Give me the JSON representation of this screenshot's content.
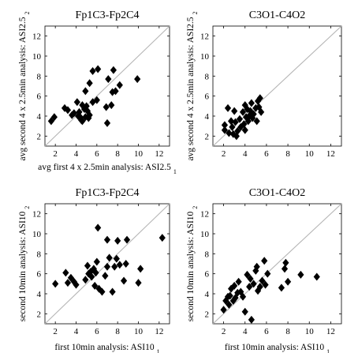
{
  "chart_data": [
    {
      "type": "scatter",
      "title": "Fp1C3-Fp2C4",
      "xlabel": "avg first 4 x 2.5min analysis: ASI2.5",
      "xlabel_sub": "1",
      "ylabel": "avg second 4 x 2.5min analysis: ASI2.5",
      "ylabel_sub": "2",
      "xlim": [
        1,
        13
      ],
      "ylim": [
        1,
        13
      ],
      "xticks": [
        2,
        4,
        6,
        8,
        10,
        12
      ],
      "yticks": [
        2,
        4,
        6,
        8,
        10,
        12
      ],
      "diagonal": true,
      "grid": false,
      "marker": "diamond",
      "points": [
        [
          1.6,
          3.5
        ],
        [
          1.9,
          3.9
        ],
        [
          2.9,
          4.8
        ],
        [
          3.2,
          4.6
        ],
        [
          3.6,
          4.1
        ],
        [
          3.8,
          4.3
        ],
        [
          4.1,
          5.4
        ],
        [
          4.2,
          4.0
        ],
        [
          4.3,
          4.4
        ],
        [
          4.4,
          3.9
        ],
        [
          4.5,
          3.6
        ],
        [
          4.6,
          3.5
        ],
        [
          4.6,
          5.1
        ],
        [
          4.8,
          4.7
        ],
        [
          4.9,
          3.9
        ],
        [
          4.9,
          6.5
        ],
        [
          5.0,
          5.0
        ],
        [
          5.1,
          4.5
        ],
        [
          5.2,
          3.8
        ],
        [
          5.3,
          4.1
        ],
        [
          5.3,
          7.3
        ],
        [
          5.6,
          5.4
        ],
        [
          5.6,
          8.5
        ],
        [
          6.0,
          5.6
        ],
        [
          6.1,
          8.7
        ],
        [
          6.9,
          4.9
        ],
        [
          7.0,
          3.3
        ],
        [
          7.1,
          7.7
        ],
        [
          7.4,
          5.1
        ],
        [
          7.5,
          6.4
        ],
        [
          7.6,
          8.6
        ],
        [
          7.8,
          6.5
        ],
        [
          8.2,
          7.1
        ],
        [
          9.9,
          7.7
        ]
      ]
    },
    {
      "type": "scatter",
      "title": "C3O1-C4O2",
      "xlabel": "",
      "ylabel": "avg second 4 x 2.5min analysis: ASI2.5",
      "ylabel_sub": "2",
      "xlim": [
        1,
        13
      ],
      "ylim": [
        1,
        13
      ],
      "xticks": [
        2,
        4,
        6,
        8,
        10,
        12
      ],
      "yticks": [
        2,
        4,
        6,
        8,
        10,
        12
      ],
      "diagonal": true,
      "grid": false,
      "marker": "diamond",
      "points": [
        [
          2.1,
          2.6
        ],
        [
          2.1,
          3.1
        ],
        [
          2.4,
          4.8
        ],
        [
          2.5,
          2.3
        ],
        [
          2.7,
          3.5
        ],
        [
          2.8,
          2.9
        ],
        [
          2.9,
          2.2
        ],
        [
          3.0,
          4.5
        ],
        [
          3.1,
          3.4
        ],
        [
          3.2,
          2.0
        ],
        [
          3.3,
          2.5
        ],
        [
          3.5,
          3.7
        ],
        [
          3.6,
          2.9
        ],
        [
          3.8,
          4.4
        ],
        [
          3.9,
          3.2
        ],
        [
          4.0,
          5.1
        ],
        [
          4.0,
          2.6
        ],
        [
          4.1,
          3.9
        ],
        [
          4.2,
          4.7
        ],
        [
          4.3,
          3.5
        ],
        [
          4.4,
          4.0
        ],
        [
          4.5,
          4.5
        ],
        [
          4.6,
          5.3
        ],
        [
          4.7,
          3.8
        ],
        [
          4.8,
          4.2
        ],
        [
          5.0,
          4.8
        ],
        [
          5.1,
          3.5
        ],
        [
          5.2,
          5.5
        ],
        [
          5.3,
          4.9
        ],
        [
          5.4,
          5.8
        ],
        [
          5.5,
          4.4
        ]
      ]
    },
    {
      "type": "scatter",
      "title": "Fp1C3-Fp2C4",
      "xlabel": "first 10min analysis: ASI10",
      "xlabel_sub": "1",
      "ylabel": "second 10min analysis: ASI10",
      "ylabel_sub": "2",
      "xlim": [
        1,
        13
      ],
      "ylim": [
        1,
        13
      ],
      "xticks": [
        2,
        4,
        6,
        8,
        10,
        12
      ],
      "yticks": [
        2,
        4,
        6,
        8,
        10,
        12
      ],
      "diagonal": true,
      "grid": false,
      "marker": "diamond",
      "points": [
        [
          2.0,
          5.0
        ],
        [
          3.0,
          6.1
        ],
        [
          3.2,
          5.1
        ],
        [
          3.5,
          5.6
        ],
        [
          3.8,
          5.2
        ],
        [
          4.0,
          4.9
        ],
        [
          4.9,
          5.4
        ],
        [
          5.1,
          6.8
        ],
        [
          5.2,
          6.0
        ],
        [
          5.4,
          6.2
        ],
        [
          5.5,
          5.7
        ],
        [
          5.7,
          6.5
        ],
        [
          5.8,
          4.8
        ],
        [
          5.9,
          6.1
        ],
        [
          6.0,
          7.2
        ],
        [
          6.1,
          10.6
        ],
        [
          6.2,
          4.5
        ],
        [
          6.5,
          4.2
        ],
        [
          6.8,
          5.8
        ],
        [
          7.0,
          6.7
        ],
        [
          7.0,
          9.4
        ],
        [
          7.2,
          7.6
        ],
        [
          7.5,
          4.2
        ],
        [
          7.7,
          6.7
        ],
        [
          7.9,
          7.5
        ],
        [
          8.0,
          9.3
        ],
        [
          8.2,
          6.9
        ],
        [
          8.6,
          5.3
        ],
        [
          8.8,
          7.0
        ],
        [
          8.9,
          9.4
        ],
        [
          10.0,
          5.1
        ],
        [
          10.2,
          6.5
        ],
        [
          12.3,
          9.6
        ]
      ]
    },
    {
      "type": "scatter",
      "title": "C3O1-C4O2",
      "xlabel": "first 10min analysis: ASI10",
      "xlabel_sub": "1",
      "ylabel": "second 10min analysis: ASI10",
      "ylabel_sub": "2",
      "xlim": [
        1,
        13
      ],
      "ylim": [
        1,
        13
      ],
      "xticks": [
        2,
        4,
        6,
        8,
        10,
        12
      ],
      "yticks": [
        2,
        4,
        6,
        8,
        10,
        12
      ],
      "diagonal": true,
      "grid": false,
      "marker": "diamond",
      "points": [
        [
          2.0,
          2.4
        ],
        [
          2.2,
          3.3
        ],
        [
          2.4,
          3.7
        ],
        [
          2.5,
          2.9
        ],
        [
          2.6,
          3.8
        ],
        [
          2.7,
          4.5
        ],
        [
          2.9,
          3.3
        ],
        [
          3.0,
          4.8
        ],
        [
          3.1,
          3.6
        ],
        [
          3.3,
          4.1
        ],
        [
          3.4,
          5.2
        ],
        [
          3.6,
          4.2
        ],
        [
          3.8,
          3.7
        ],
        [
          4.0,
          2.2
        ],
        [
          4.2,
          5.9
        ],
        [
          4.4,
          4.7
        ],
        [
          4.5,
          5.5
        ],
        [
          4.6,
          1.4
        ],
        [
          4.8,
          5.0
        ],
        [
          5.0,
          6.3
        ],
        [
          5.1,
          6.7
        ],
        [
          5.2,
          4.3
        ],
        [
          5.4,
          4.7
        ],
        [
          5.6,
          5.3
        ],
        [
          5.8,
          7.3
        ],
        [
          5.9,
          4.9
        ],
        [
          6.1,
          6.0
        ],
        [
          7.4,
          4.6
        ],
        [
          7.7,
          6.5
        ],
        [
          7.8,
          7.1
        ],
        [
          8.0,
          5.2
        ],
        [
          9.2,
          5.9
        ],
        [
          10.7,
          5.7
        ]
      ]
    }
  ]
}
